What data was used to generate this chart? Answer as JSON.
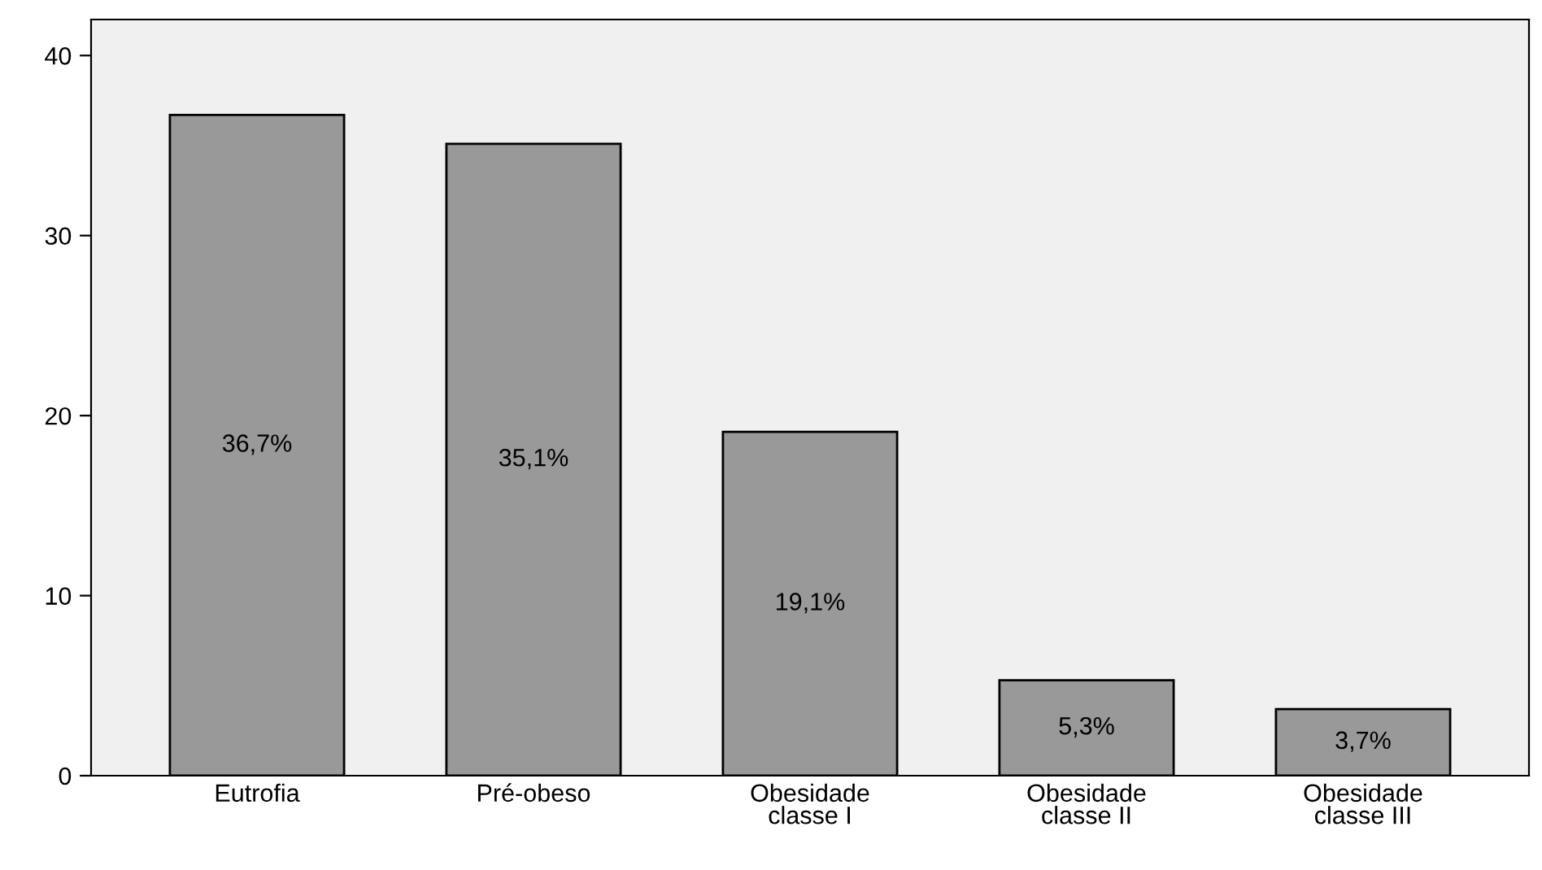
{
  "chart_data": {
    "type": "bar",
    "categories": [
      "Eutrofia",
      "Pré-obeso",
      "Obesidade\nclasse I",
      "Obesidade\nclasse II",
      "Obesidade\nclasse III"
    ],
    "values": [
      36.7,
      35.1,
      19.1,
      5.3,
      3.7
    ],
    "value_labels": [
      "36,7%",
      "35,1%",
      "19,1%",
      "5,3%",
      "3,7%"
    ],
    "color": "#999999",
    "ylim": [
      0,
      42
    ],
    "yticks": [
      0,
      10,
      20,
      30,
      40
    ],
    "grid": false,
    "legend": false
  }
}
